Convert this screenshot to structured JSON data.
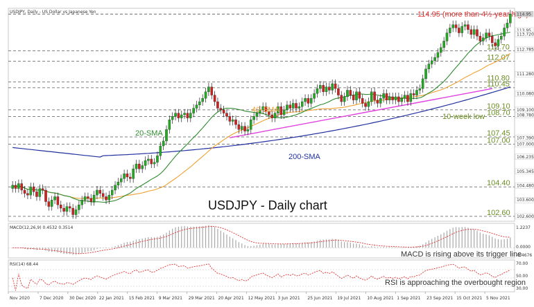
{
  "chart_data": {
    "type": "candlestick",
    "symbol_label": "USDJPY, Daily - US Dollar vs Japanese Yen",
    "main_title": "USDJPY - Daily chart",
    "x_ticks": [
      "Nov 2020",
      "7 Dec 2020",
      "30 Dec 2020",
      "22 Jan 2021",
      "15 Feb 2021",
      "9 Mar 2021",
      "29 Mar 2021",
      "20 Apr 2021",
      "12 May 2021",
      "3 Jun 2021",
      "25 Jun 2021",
      "19 Jul 2021",
      "10 Aug 2021",
      "1 Sep 2021",
      "23 Sep 2021",
      "15 Oct 2021",
      "5 Nov 2021"
    ],
    "y_axis_labels": [
      "114.95",
      "113.95",
      "113.720",
      "112.785",
      "111.280",
      "110.080",
      "109.100",
      "108.780",
      "107.390",
      "107.000",
      "106.235",
      "105.345",
      "104.480",
      "103.600",
      "102.600"
    ],
    "ylim": [
      102.3,
      115.3
    ],
    "levels": [
      {
        "label": "112.70",
        "value": 112.7
      },
      {
        "label": "112.07",
        "value": 112.07
      },
      {
        "label": "110.80",
        "value": 110.8
      },
      {
        "label": "110.45",
        "value": 110.45
      },
      {
        "label": "109.10",
        "value": 109.1
      },
      {
        "label": "108.70",
        "value": 108.7
      },
      {
        "label": "107.45",
        "value": 107.45
      },
      {
        "label": "107.00",
        "value": 107.0
      },
      {
        "label": "104.40",
        "value": 104.4
      },
      {
        "label": "102.60",
        "value": 102.6
      }
    ],
    "annotations": {
      "high": "114.95 (more than 4½-year high)",
      "sma20": "20-SMA",
      "sma40": "40-SMA",
      "sma200": "200-SMA",
      "tenweek": "10-week low",
      "macd_note": "MACD is rising above its trigger line",
      "rsi_note": "RSI is approaching the overbought region"
    },
    "series_colors": {
      "up": "#22aa22",
      "down": "#cc2222",
      "sma20": "#2e8b2e",
      "sma40": "#f0a030",
      "sma200": "#1f2f9f",
      "trend": "#e040e0",
      "high_text": "#e03030",
      "level_text": "#6b8e23"
    },
    "close_series": [
      104.5,
      104.3,
      104.6,
      104.2,
      104.0,
      103.9,
      104.4,
      104.1,
      103.8,
      104.3,
      104.2,
      103.5,
      103.2,
      103.6,
      103.8,
      103.3,
      103.1,
      102.9,
      103.2,
      103.1,
      102.7,
      103.0,
      103.3,
      103.6,
      103.8,
      103.7,
      103.5,
      103.9,
      104.2,
      104.0,
      103.8,
      103.6,
      103.9,
      104.2,
      104.5,
      104.7,
      104.9,
      105.2,
      105.0,
      104.9,
      105.5,
      105.8,
      105.5,
      105.7,
      106.0,
      106.1,
      105.8,
      105.9,
      106.3,
      106.9,
      107.2,
      107.9,
      108.5,
      108.7,
      108.9,
      108.6,
      108.8,
      108.9,
      108.6,
      108.9,
      109.2,
      109.4,
      109.6,
      109.8,
      110.2,
      110.5,
      110.0,
      109.6,
      109.2,
      109.1,
      108.9,
      108.7,
      108.4,
      108.5,
      108.2,
      107.9,
      108.1,
      107.8,
      107.9,
      108.5,
      108.7,
      108.9,
      109.1,
      109.3,
      109.0,
      108.8,
      108.6,
      108.9,
      109.3,
      108.8,
      109.1,
      109.4,
      109.2,
      109.5,
      109.2,
      109.3,
      109.6,
      109.8,
      109.5,
      109.8,
      110.1,
      110.4,
      110.6,
      110.2,
      110.5,
      110.3,
      110.7,
      110.4,
      110.0,
      109.6,
      109.9,
      110.3,
      110.0,
      109.7,
      110.2,
      109.8,
      109.5,
      109.3,
      109.6,
      110.2,
      109.7,
      109.5,
      109.8,
      110.1,
      109.7,
      109.9,
      109.7,
      109.9,
      109.6,
      109.8,
      110.0,
      109.6,
      110.1,
      110.0,
      110.3,
      110.4,
      111.0,
      111.6,
      111.9,
      112.1,
      112.3,
      112.6,
      112.9,
      113.3,
      113.8,
      114.1,
      114.3,
      114.1,
      113.8,
      114.2,
      114.3,
      114.0,
      113.7,
      114.0,
      113.6,
      113.3,
      113.5,
      113.8,
      113.6,
      113.2,
      113.0,
      113.4,
      113.6,
      114.1,
      114.4,
      114.95
    ],
    "macd_labels": {
      "left": "MACD(12,26,9) 0.4532 0.3514",
      "top": "1.2237",
      "zero": "0.0000",
      "bottom": "-0.4676"
    },
    "rsi_labels": {
      "left": "RSI(14) 68.44",
      "top": "70.00",
      "mid": "50.00",
      "bottom": "30.00"
    }
  }
}
